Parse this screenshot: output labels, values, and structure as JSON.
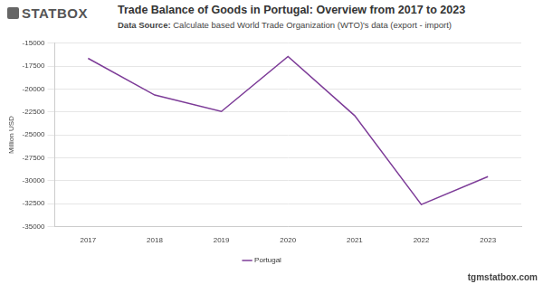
{
  "logo": "STATBOX",
  "footer": "tgmstatbox.com",
  "chart_data": {
    "type": "line",
    "title": "Trade Balance of Goods in Portugal: Overview from 2017 to 2023",
    "subtitle": "Data Source: Calculate based World Trade Organization (WTO)'s data (export - import)",
    "y_label": "Million USD",
    "categories": [
      "2017",
      "2018",
      "2019",
      "2020",
      "2021",
      "2022",
      "2023"
    ],
    "series": [
      {
        "name": "Portugal",
        "color": "#7d3c98",
        "values": [
          -16650,
          -20650,
          -22450,
          -16450,
          -22900,
          -32600,
          -29550
        ]
      }
    ],
    "ylim": [
      -35000,
      -15000
    ],
    "yticks": [
      -35000,
      -32500,
      -30000,
      -27500,
      -25000,
      -22500,
      -20000,
      -17500,
      -15000
    ],
    "grid": true,
    "legend": "bottom"
  }
}
